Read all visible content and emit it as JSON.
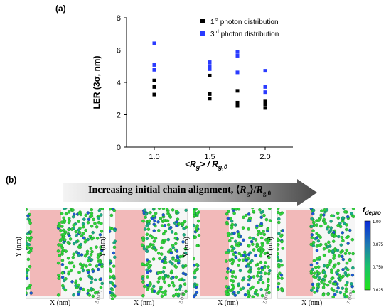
{
  "panel_a": {
    "label": "(a)",
    "legend": {
      "s1_prefix": "1",
      "s1_sup": "st",
      "s1_suffix": " photon distribution",
      "s3_prefix": "3",
      "s3_sup": "rd",
      "s3_suffix": " photon distribution"
    }
  },
  "chart_data": {
    "type": "scatter",
    "ylabel": "LER (3σ, nm)",
    "xlabel_main": "<R",
    "xlabel_sub1": "g",
    "xlabel_mid": "> / R",
    "xlabel_sub2": "g,0",
    "xlim": [
      0.75,
      2.25
    ],
    "ylim": [
      0,
      8
    ],
    "xticks": [
      1.0,
      1.5,
      2.0
    ],
    "xtick_labels": [
      "1.0",
      "1.5",
      "2.0"
    ],
    "yticks": [
      0,
      2,
      4,
      6,
      8
    ],
    "ytick_labels": [
      "0",
      "2",
      "4",
      "6",
      "8"
    ],
    "series": [
      {
        "name": "1st photon distribution",
        "color": "#000000",
        "points": [
          [
            1.0,
            3.25
          ],
          [
            1.0,
            3.72
          ],
          [
            1.0,
            4.12
          ],
          [
            1.5,
            3.0
          ],
          [
            1.5,
            3.28
          ],
          [
            1.5,
            4.42
          ],
          [
            1.75,
            2.55
          ],
          [
            1.75,
            2.75
          ],
          [
            1.75,
            3.48
          ],
          [
            2.0,
            2.42
          ],
          [
            2.0,
            2.65
          ],
          [
            2.0,
            2.82
          ]
        ]
      },
      {
        "name": "3rd photon distribution",
        "color": "#2a3bff",
        "points": [
          [
            1.0,
            4.78
          ],
          [
            1.0,
            5.08
          ],
          [
            1.0,
            6.42
          ],
          [
            1.5,
            4.82
          ],
          [
            1.5,
            5.02
          ],
          [
            1.5,
            5.25
          ],
          [
            1.75,
            4.62
          ],
          [
            1.75,
            5.65
          ],
          [
            1.75,
            5.88
          ],
          [
            2.0,
            3.4
          ],
          [
            2.0,
            3.72
          ],
          [
            2.0,
            4.72
          ]
        ]
      }
    ]
  },
  "panel_b": {
    "label": "(b)",
    "arrow_text": "Increasing initial chain alignment, ",
    "arrow_math_rg": "R",
    "arrow_math_rg_sub": "g",
    "arrow_math_r0": "R",
    "arrow_math_r0_sub": "g,0",
    "snapshots": [
      {
        "xlabel": "X (nm)",
        "ylabel": "Y (nm)",
        "zlabel": "Z (nm)"
      },
      {
        "xlabel": "X (nm)",
        "ylabel": "Y (nm)",
        "zlabel": "Z (nm)"
      },
      {
        "xlabel": "X (nm)",
        "ylabel": "Y (nm)",
        "zlabel": "Z (nm)"
      },
      {
        "xlabel": "X (nm)",
        "ylabel": "Y (nm)",
        "zlabel": "Z (nm)"
      }
    ],
    "colorbar": {
      "title": "f",
      "title_sub": "depro",
      "ticks": [
        "1.00",
        "0.875",
        "0.750",
        "0.625"
      ]
    }
  }
}
